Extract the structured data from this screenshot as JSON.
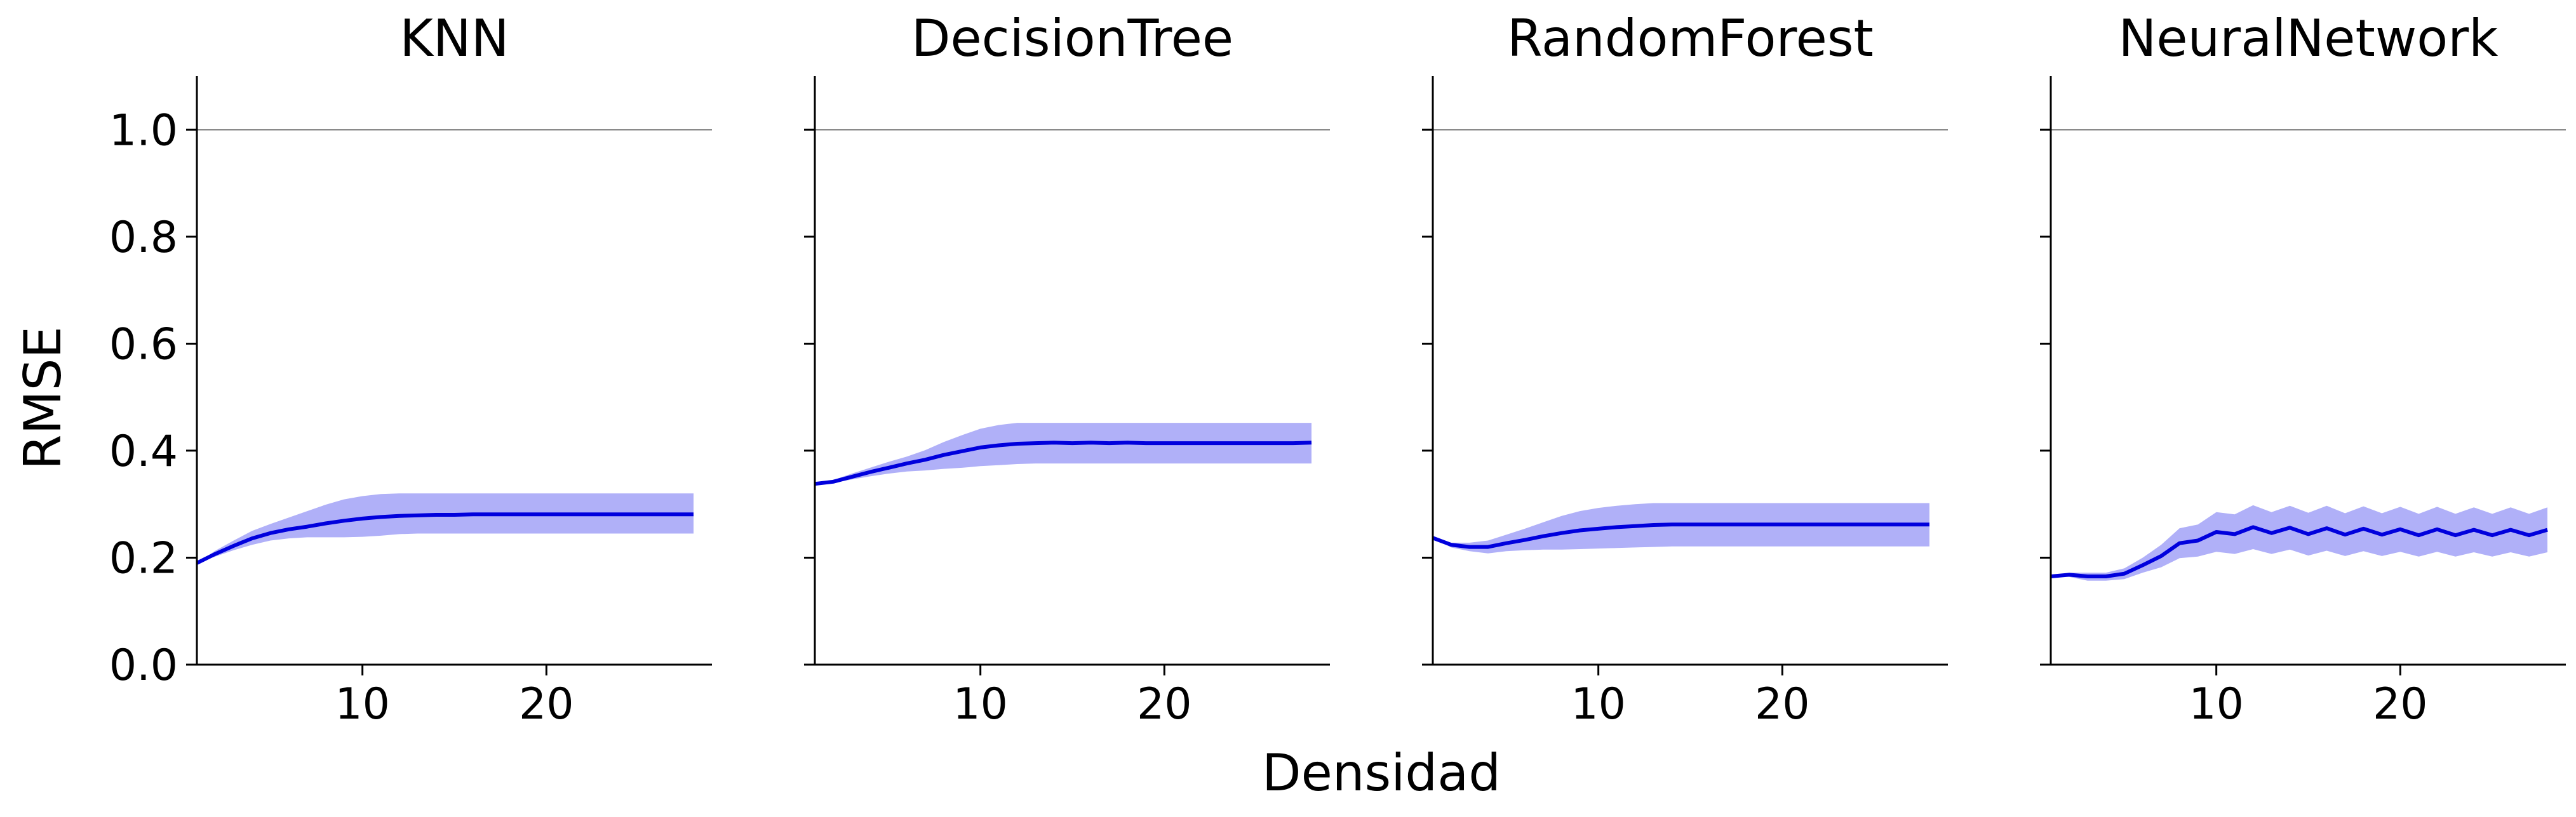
{
  "chart_data": {
    "type": "line",
    "ylabel": "RMSE",
    "xlabel": "Densidad",
    "ylim": [
      0,
      1.1
    ],
    "xlim": [
      1,
      29
    ],
    "yticks": [
      0.0,
      0.2,
      0.4,
      0.6,
      0.8,
      1.0
    ],
    "ytick_labels": [
      "0.0",
      "0.2",
      "0.4",
      "0.6",
      "0.8",
      "1.0"
    ],
    "xticks": [
      10,
      20
    ],
    "xtick_labels": [
      "10",
      "20"
    ],
    "reference_line_y": 1.0,
    "grid": false,
    "line_color": "#0000dd",
    "band_color": "#b0b0f8",
    "x": [
      1,
      2,
      3,
      4,
      5,
      6,
      7,
      8,
      9,
      10,
      11,
      12,
      13,
      14,
      15,
      16,
      17,
      18,
      19,
      20,
      21,
      22,
      23,
      24,
      25,
      26,
      27,
      28
    ],
    "panels": [
      {
        "title": "KNN",
        "mean": [
          0.19,
          0.207,
          0.222,
          0.236,
          0.246,
          0.253,
          0.258,
          0.264,
          0.269,
          0.273,
          0.276,
          0.278,
          0.279,
          0.28,
          0.28,
          0.281,
          0.281,
          0.281,
          0.281,
          0.281,
          0.281,
          0.281,
          0.281,
          0.281,
          0.281,
          0.281,
          0.281,
          0.281
        ],
        "upper": [
          0.19,
          0.213,
          0.232,
          0.25,
          0.263,
          0.275,
          0.287,
          0.299,
          0.309,
          0.315,
          0.319,
          0.32,
          0.32,
          0.32,
          0.32,
          0.32,
          0.32,
          0.32,
          0.32,
          0.32,
          0.32,
          0.32,
          0.32,
          0.32,
          0.32,
          0.32,
          0.32,
          0.32
        ],
        "lower": [
          0.19,
          0.202,
          0.214,
          0.224,
          0.232,
          0.236,
          0.238,
          0.238,
          0.238,
          0.239,
          0.241,
          0.244,
          0.245,
          0.245,
          0.245,
          0.245,
          0.245,
          0.245,
          0.245,
          0.245,
          0.245,
          0.245,
          0.245,
          0.245,
          0.245,
          0.245,
          0.245,
          0.245
        ]
      },
      {
        "title": "DecisionTree",
        "mean": [
          0.338,
          0.342,
          0.351,
          0.36,
          0.368,
          0.376,
          0.383,
          0.392,
          0.399,
          0.406,
          0.41,
          0.413,
          0.414,
          0.415,
          0.414,
          0.415,
          0.414,
          0.415,
          0.414,
          0.414,
          0.414,
          0.414,
          0.414,
          0.414,
          0.414,
          0.414,
          0.414,
          0.415
        ],
        "upper": [
          0.338,
          0.345,
          0.357,
          0.368,
          0.379,
          0.389,
          0.401,
          0.416,
          0.429,
          0.441,
          0.448,
          0.452,
          0.452,
          0.452,
          0.452,
          0.452,
          0.452,
          0.452,
          0.452,
          0.452,
          0.452,
          0.452,
          0.452,
          0.452,
          0.452,
          0.452,
          0.452,
          0.452
        ],
        "lower": [
          0.338,
          0.34,
          0.346,
          0.352,
          0.357,
          0.361,
          0.363,
          0.366,
          0.368,
          0.371,
          0.373,
          0.375,
          0.376,
          0.376,
          0.376,
          0.376,
          0.376,
          0.376,
          0.376,
          0.376,
          0.376,
          0.376,
          0.376,
          0.376,
          0.376,
          0.376,
          0.376,
          0.376
        ]
      },
      {
        "title": "RandomForest",
        "mean": [
          0.237,
          0.224,
          0.22,
          0.22,
          0.227,
          0.233,
          0.24,
          0.246,
          0.251,
          0.254,
          0.257,
          0.259,
          0.261,
          0.262,
          0.262,
          0.262,
          0.262,
          0.262,
          0.262,
          0.262,
          0.262,
          0.262,
          0.262,
          0.262,
          0.262,
          0.262,
          0.262,
          0.262
        ],
        "upper": [
          0.237,
          0.228,
          0.228,
          0.232,
          0.243,
          0.254,
          0.266,
          0.278,
          0.287,
          0.293,
          0.297,
          0.3,
          0.302,
          0.302,
          0.302,
          0.302,
          0.302,
          0.302,
          0.302,
          0.302,
          0.302,
          0.302,
          0.302,
          0.302,
          0.302,
          0.302,
          0.302,
          0.302
        ],
        "lower": [
          0.237,
          0.219,
          0.212,
          0.208,
          0.212,
          0.214,
          0.215,
          0.215,
          0.216,
          0.217,
          0.218,
          0.219,
          0.22,
          0.221,
          0.221,
          0.221,
          0.221,
          0.221,
          0.221,
          0.221,
          0.221,
          0.221,
          0.221,
          0.221,
          0.221,
          0.221,
          0.221,
          0.221
        ]
      },
      {
        "title": "NeuralNetwork",
        "mean": [
          0.165,
          0.168,
          0.165,
          0.165,
          0.17,
          0.186,
          0.203,
          0.227,
          0.232,
          0.248,
          0.244,
          0.257,
          0.246,
          0.256,
          0.244,
          0.255,
          0.243,
          0.254,
          0.243,
          0.253,
          0.242,
          0.253,
          0.242,
          0.252,
          0.242,
          0.252,
          0.242,
          0.252
        ],
        "upper": [
          0.165,
          0.172,
          0.172,
          0.172,
          0.18,
          0.2,
          0.224,
          0.255,
          0.262,
          0.285,
          0.281,
          0.298,
          0.285,
          0.297,
          0.284,
          0.297,
          0.283,
          0.296,
          0.283,
          0.295,
          0.282,
          0.295,
          0.282,
          0.294,
          0.282,
          0.294,
          0.282,
          0.294
        ],
        "lower": [
          0.165,
          0.164,
          0.157,
          0.157,
          0.16,
          0.172,
          0.182,
          0.199,
          0.202,
          0.211,
          0.207,
          0.216,
          0.207,
          0.215,
          0.204,
          0.213,
          0.203,
          0.212,
          0.203,
          0.211,
          0.202,
          0.211,
          0.202,
          0.21,
          0.202,
          0.21,
          0.202,
          0.21
        ]
      }
    ]
  }
}
